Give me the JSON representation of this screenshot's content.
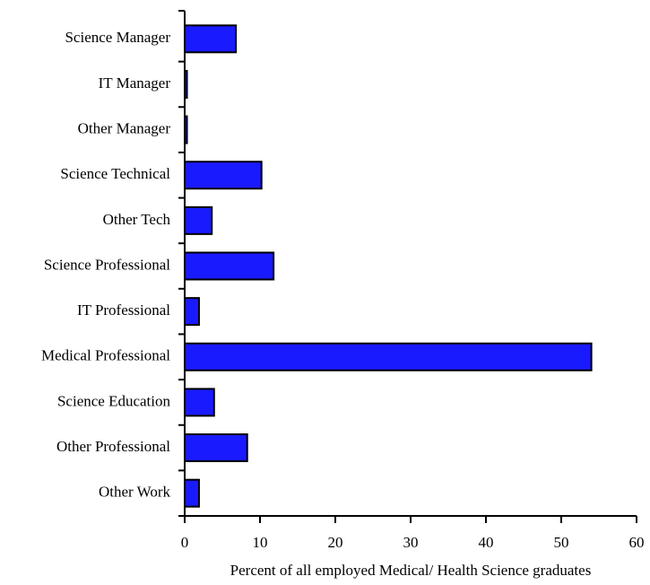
{
  "chart_data": {
    "type": "barh",
    "x_label": "Percent of all employed Medical/ Health Science graduates",
    "categories": [
      "Science Manager",
      "IT Manager",
      "Other Manager",
      "Science Technical",
      "Other Tech",
      "Science Professional",
      "IT Professional",
      "Medical Professional",
      "Science Education",
      "Other Professional",
      "Other Work"
    ],
    "values": [
      6.8,
      0.3,
      0.3,
      10.2,
      3.6,
      11.8,
      1.9,
      54,
      3.9,
      8.3,
      1.9
    ],
    "color": "#1a1aff",
    "xlim": [
      0,
      60
    ],
    "xticks": [
      0,
      10,
      20,
      30,
      40,
      50,
      60
    ]
  }
}
